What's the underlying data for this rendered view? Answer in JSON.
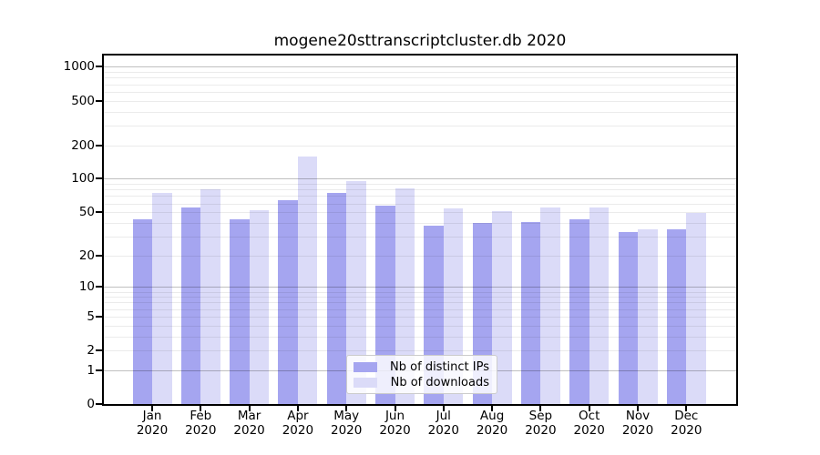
{
  "chart_data": {
    "type": "bar",
    "title": "mogene20sttranscriptcluster.db 2020",
    "categories": [
      "Jan",
      "Feb",
      "Mar",
      "Apr",
      "May",
      "Jun",
      "Jul",
      "Aug",
      "Sep",
      "Oct",
      "Nov",
      "Dec"
    ],
    "x_sublabel": "2020",
    "series": [
      {
        "name": "Nb of distinct IPs",
        "color": "#a5a5f0",
        "values": [
          43,
          55,
          43,
          64,
          75,
          57,
          38,
          40,
          41,
          43,
          33,
          35
        ]
      },
      {
        "name": "Nb of downloads",
        "color": "#dbdbf8",
        "values": [
          74,
          80,
          52,
          158,
          96,
          82,
          54,
          51,
          55,
          55,
          35,
          49
        ]
      }
    ],
    "y_scale": "log1p",
    "y_ticks": [
      0,
      1,
      2,
      5,
      10,
      20,
      50,
      100,
      200,
      500,
      1000
    ],
    "y_axis_range": [
      0,
      1350
    ],
    "xlabel": "",
    "ylabel": "",
    "grid": true,
    "legend_position": "lower center"
  },
  "colors": {
    "bar_distinct_ips": "#a5a5f0",
    "bar_downloads": "#dbdbf8",
    "grid_major": "#c0c0c0",
    "grid_minor": "#ebebeb",
    "axis": "#000000",
    "background": "#ffffff"
  }
}
